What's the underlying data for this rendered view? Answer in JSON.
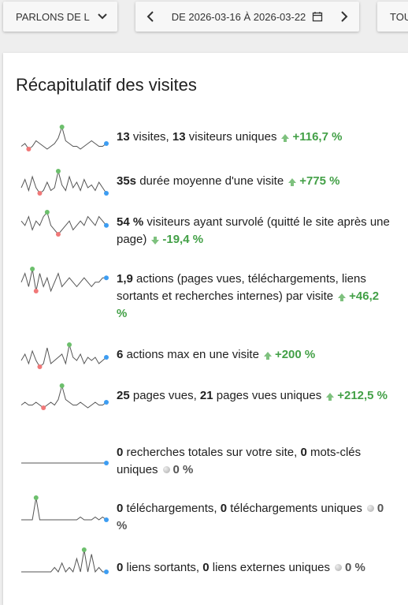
{
  "toolbar": {
    "site_label": "PARLONS DE L",
    "period_label": "DE 2026-03-16 À 2026-03-22",
    "segment_label": "TOU"
  },
  "card": {
    "title": "Récapitulatif des visites"
  },
  "colors": {
    "accent_up": "#43a047",
    "spark_line": "#555555",
    "max_dot": "#6cbf6c",
    "min_dot": "#f07878",
    "last_dot": "#3d9df2"
  },
  "metrics": [
    {
      "name": "visits",
      "pre": "",
      "v1": "13",
      "t1": " visites, ",
      "v2": "13",
      "t2": " visiteurs uniques",
      "evo": "+116,7 %",
      "dir": "up",
      "spark": [
        2,
        3,
        1,
        2,
        4,
        3,
        2,
        1,
        2,
        3,
        5,
        9,
        4,
        3,
        2,
        2,
        1,
        2,
        3,
        4,
        3,
        2,
        2,
        3
      ]
    },
    {
      "name": "avg-time",
      "v1": "35s",
      "t1": " durée moyenne d'une visite",
      "evo": "+775 %",
      "dir": "up",
      "spark": [
        3,
        6,
        2,
        7,
        3,
        1,
        2,
        5,
        2,
        3,
        9,
        4,
        2,
        7,
        3,
        5,
        2,
        6,
        3,
        4,
        2,
        5,
        3,
        1
      ]
    },
    {
      "name": "bounce",
      "v1": "54 %",
      "t1": " visiteurs ayant survolé (quitté le site après une page)",
      "evo": "-19,4 %",
      "dir": "down",
      "spark": [
        5,
        4,
        6,
        3,
        5,
        4,
        6,
        7,
        4,
        3,
        2,
        3,
        4,
        5,
        3,
        4,
        5,
        4,
        6,
        5,
        4,
        6,
        5,
        4
      ]
    },
    {
      "name": "actions",
      "v1": "1,9",
      "t1": " actions (pages vues, téléchargements, liens sortants et recherches internes) par visite",
      "evo": "+46,2 %",
      "dir": "up",
      "spark": [
        4,
        6,
        3,
        7,
        2,
        6,
        3,
        5,
        2,
        4,
        6,
        3,
        4,
        5,
        4,
        3,
        4,
        5,
        4,
        3,
        4,
        4,
        5,
        5
      ]
    },
    {
      "name": "max-actions",
      "v1": "6",
      "t1": " actions max en une visite",
      "evo": "+200 %",
      "dir": "up",
      "spark": [
        3,
        5,
        2,
        6,
        3,
        1,
        2,
        7,
        2,
        3,
        4,
        5,
        2,
        8,
        4,
        3,
        5,
        2,
        4,
        3,
        4,
        2,
        3,
        4
      ]
    },
    {
      "name": "pageviews",
      "v1": "25",
      "t1": " pages vues, ",
      "v2": "21",
      "t2": " pages vues uniques",
      "evo": "+212,5 %",
      "dir": "up",
      "spark": [
        2,
        3,
        2,
        2,
        3,
        2,
        1,
        2,
        3,
        2,
        4,
        9,
        4,
        3,
        2,
        2,
        3,
        2,
        1,
        2,
        3,
        2,
        2,
        3
      ]
    },
    {
      "name": "searches",
      "v1": "0",
      "t1": " recherches totales sur votre site, ",
      "v2": "0",
      "t2": " mots-clés uniques",
      "evo": "0 %",
      "dir": "none",
      "spark": [
        0,
        0,
        0,
        0,
        0,
        0,
        0,
        0,
        0,
        0,
        0,
        0,
        0,
        0,
        0,
        0,
        0,
        0,
        0,
        0,
        0,
        0,
        0,
        0
      ]
    },
    {
      "name": "downloads",
      "v1": "0",
      "t1": " téléchargements, ",
      "v2": "0",
      "t2": " téléchargements uniques",
      "evo": "0 %",
      "dir": "none",
      "spark": [
        0,
        0,
        0,
        0,
        8,
        0,
        0,
        0,
        0,
        0,
        0,
        0,
        0,
        0,
        0,
        0,
        1,
        0,
        0,
        0,
        1,
        0,
        1,
        0
      ]
    },
    {
      "name": "outlinks",
      "v1": "0",
      "t1": " liens sortants, ",
      "v2": "0",
      "t2": " liens externes uniques",
      "evo": "0 %",
      "dir": "none",
      "spark": [
        0,
        0,
        0,
        0,
        0,
        0,
        0,
        0,
        0,
        1,
        0,
        2,
        0,
        1,
        0,
        3,
        0,
        5,
        0,
        4,
        0,
        1,
        0,
        0
      ]
    }
  ]
}
